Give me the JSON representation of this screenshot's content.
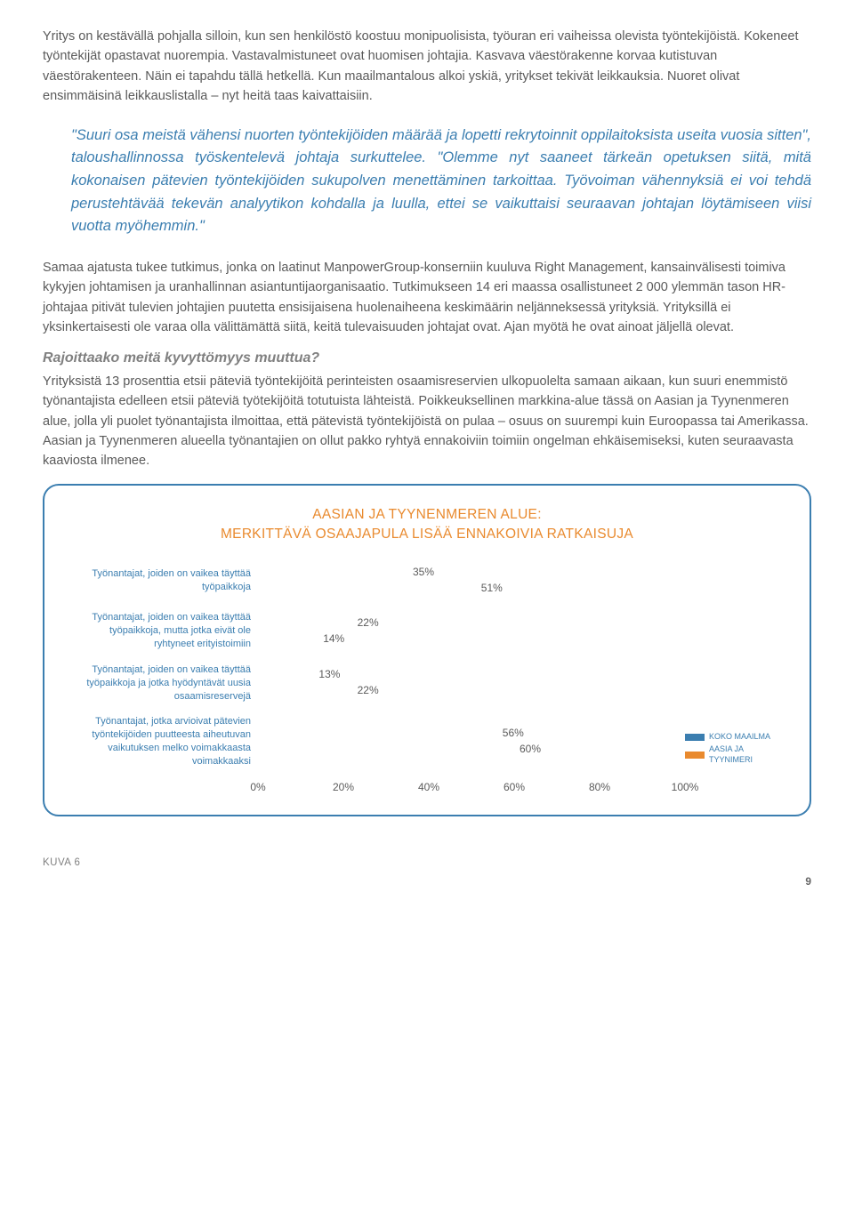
{
  "paragraphs": {
    "p1": "Yritys on kestävällä pohjalla silloin, kun sen henkilöstö koostuu monipuolisista, työuran eri vaiheissa olevista työntekijöistä. Kokeneet työntekijät opastavat nuorempia. Vastavalmistuneet ovat huomisen johtajia. Kasvava väestörakenne korvaa kutistuvan väestörakenteen. Näin ei tapahdu tällä hetkellä. Kun maailmantalous alkoi yskiä, yritykset tekivät leikkauksia. Nuoret olivat ensimmäisinä leikkauslistalla – nyt heitä taas kaivattaisiin.",
    "quote": "\"Suuri osa meistä vähensi nuorten työntekijöiden määrää ja lopetti rekrytoinnit oppilaitoksista useita vuosia sitten\", taloushallinnossa työskentelevä johtaja surkuttelee. \"Olemme nyt saaneet tärkeän opetuksen siitä, mitä kokonaisen pätevien työntekijöiden sukupolven menettäminen tarkoittaa. Työvoiman vähennyksiä ei voi tehdä perustehtävää tekevän analyytikon kohdalla ja luulla, ettei se vaikuttaisi seuraavan johtajan löytämiseen viisi vuotta myöhemmin.\"",
    "p2": "Samaa ajatusta tukee tutkimus, jonka on laatinut ManpowerGroup-konserniin kuuluva Right Management, kansainvälisesti toimiva kykyjen johtamisen ja uranhallinnan asiantuntijaorganisaatio. Tutkimukseen 14 eri maassa osallistuneet 2 000 ylemmän tason HR-johtajaa pitivät tulevien johtajien puutetta ensisijaisena huolenaiheena keskimäärin neljänneksessä yrityksiä. Yrityksillä ei yksinkertaisesti ole varaa olla välittämättä siitä, keitä tulevaisuuden johtajat ovat. Ajan myötä he ovat ainoat jäljellä olevat.",
    "subhead": "Rajoittaako meitä kyvyttömyys muuttua?",
    "p3": "Yrityksistä 13 prosenttia etsii päteviä työntekijöitä perinteisten osaamisreservien ulkopuolelta samaan aikaan, kun suuri enemmistö työnantajista edelleen etsii päteviä työtekijöitä totutuista lähteistä. Poikkeuksellinen markkina-alue tässä on Aasian ja Tyynenmeren alue, jolla yli puolet työnantajista ilmoittaa, että pätevistä työntekijöistä on pulaa – osuus on suurempi kuin Euroopassa tai Amerikassa. Aasian ja Tyynenmeren alueella työnantajien on ollut pakko ryhtyä ennakoiviin toimiin ongelman ehkäisemiseksi, kuten seuraavasta kaaviosta ilmenee."
  },
  "chart": {
    "title_line1": "AASIAN JA TYYNENMEREN ALUE:",
    "title_line2": "MERKITTÄVÄ OSAAJAPULA LISÄÄ ENNAKOIVIA RATKAISUJA",
    "colors": {
      "series_global": "#3b7eb0",
      "series_asia": "#e98a2e",
      "title_color": "#e98a2e",
      "label_color": "#3b7eb0",
      "border_color": "#3b7eb0"
    },
    "xmax": 100,
    "ticks": [
      "0%",
      "20%",
      "40%",
      "60%",
      "80%",
      "100%"
    ],
    "tick_positions": [
      0,
      20,
      40,
      60,
      80,
      100
    ],
    "rows": [
      {
        "label": "Työnantajat, joiden on vaikea täyttää työpaikkoja",
        "global": 35,
        "global_label": "35%",
        "asia": 51,
        "asia_label": "51%"
      },
      {
        "label": "Työnantajat, joiden on vaikea täyttää työpaikkoja, mutta jotka eivät ole ryhtyneet erityistoimiin",
        "global": 22,
        "global_label": "22%",
        "asia": 14,
        "asia_label": "14%"
      },
      {
        "label": "Työnantajat, joiden on vaikea täyttää työpaikkoja ja jotka hyödyntävät uusia osaamisreservejä",
        "global": 13,
        "global_label": "13%",
        "asia": 22,
        "asia_label": "22%"
      },
      {
        "label": "Työnantajat, jotka arvioivat pätevien työntekijöiden puutteesta aiheutuvan vaikutuksen melko voimakkaasta voimakkaaksi",
        "global": 56,
        "global_label": "56%",
        "asia": 60,
        "asia_label": "60%"
      }
    ],
    "legend": {
      "global": "KOKO MAAILMA",
      "asia": "AASIA JA TYYNIMERI"
    }
  },
  "footer": {
    "figure_label": "KUVA 6",
    "page_number": "9"
  }
}
